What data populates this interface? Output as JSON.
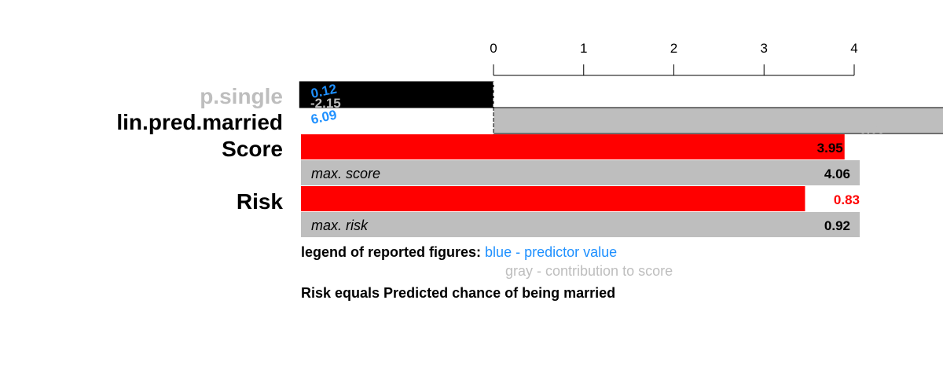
{
  "colors": {
    "background": "#ffffff",
    "black_bar": "#000000",
    "gray_bar": "#bebebe",
    "red_bar": "#ff0000",
    "predictor_blue": "#1e90ff",
    "contribution_gray": "#bebebe",
    "risk_red": "#ff0000",
    "text": "#000000"
  },
  "chart_data": {
    "type": "bar",
    "x_ticks": [
      "0",
      "1",
      "2",
      "3",
      "4"
    ],
    "xlim": [
      0,
      4
    ],
    "rows": [
      {
        "label": "p.single",
        "label_color": "#bebebe",
        "bar_color": "#000000",
        "from": -2.15,
        "to": 0,
        "predictor_value": "0.12",
        "contribution": "-2.15"
      },
      {
        "label": "lin.pred.married",
        "label_color": "#000000",
        "bar_color": "#bebebe",
        "from": 0,
        "to": 6.09,
        "predictor_value": "6.09",
        "contribution": "6.09"
      }
    ],
    "score": {
      "label": "Score",
      "value": 3.95,
      "value_text": "3.95",
      "max": 4.06
    },
    "max_score": {
      "label": "max. score",
      "value": 4.06,
      "value_text": "4.06"
    },
    "risk": {
      "label": "Risk",
      "value": 0.83,
      "value_text": "0.83",
      "max": 0.92
    },
    "max_risk": {
      "label": "max. risk",
      "value": 0.92,
      "value_text": "0.92"
    }
  },
  "legend": {
    "title": "legend of reported figures:",
    "blue_text": "blue - predictor value",
    "gray_text": "gray - contribution to score",
    "note": "Risk equals Predicted chance of being married"
  }
}
